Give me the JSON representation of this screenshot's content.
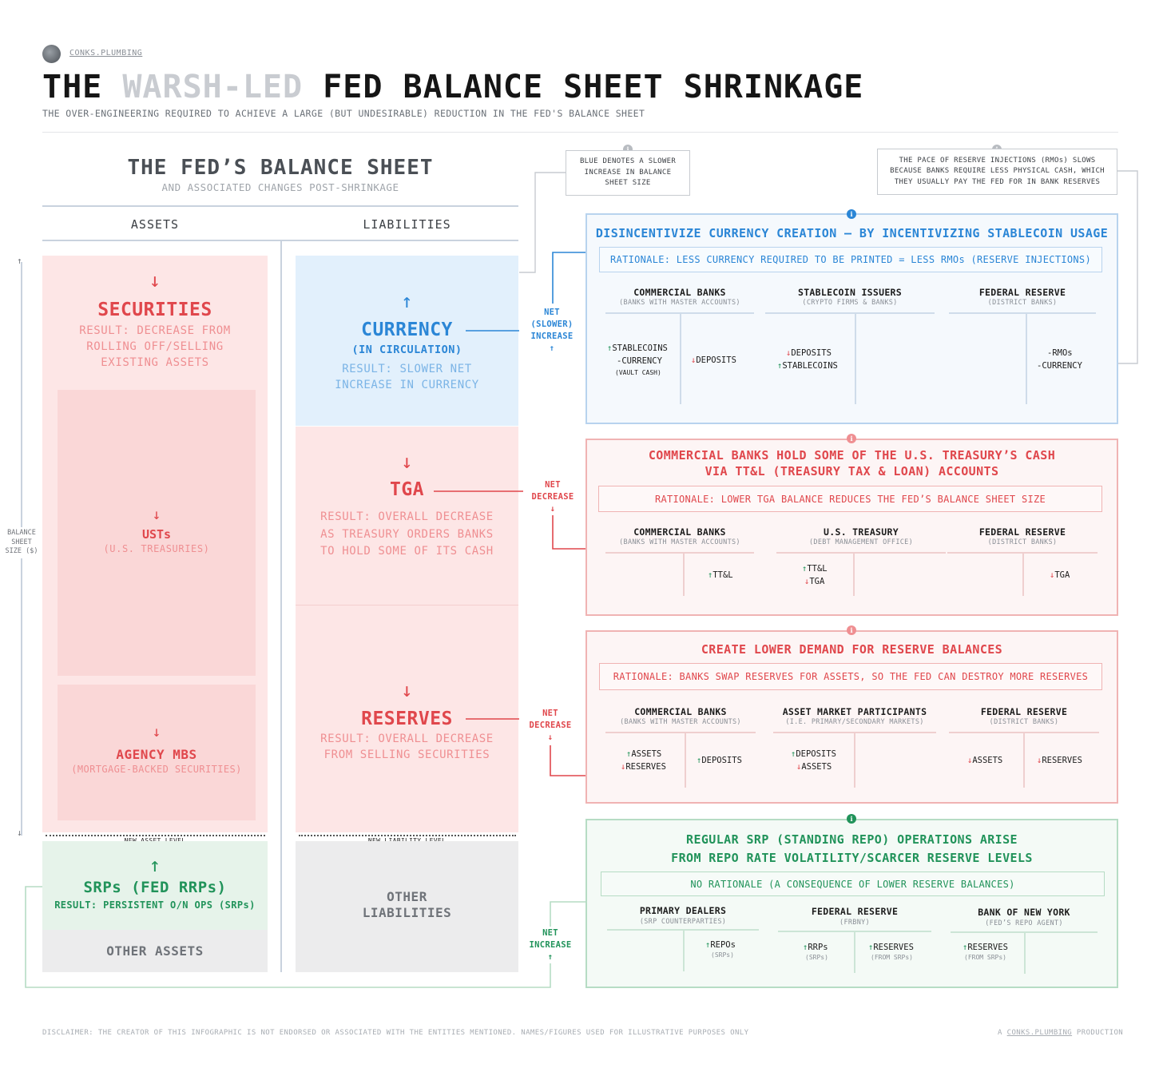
{
  "header": {
    "brand": "CONKS.PLUMBING",
    "title_pre": "THE ",
    "title_highlight": "WARSH-LED",
    "title_post": " FED BALANCE SHEET SHRINKAGE",
    "subtitle": "THE OVER-ENGINEERING REQUIRED TO ACHIEVE A LARGE (BUT UNDESIRABLE) REDUCTION IN THE FED'S BALANCE SHEET"
  },
  "balance_sheet": {
    "title": "THE FED’S BALANCE SHEET",
    "subtitle": "AND ASSOCIATED CHANGES POST-SHRINKAGE",
    "assets_header": "ASSETS",
    "liabilities_header": "LIABILITIES",
    "axis_label": "BALANCE SHEET SIZE ($)",
    "securities": {
      "arrow": "↓",
      "name": "SECURITIES",
      "result": "RESULT: DECREASE FROM ROLLING OFF/SELLING EXISTING ASSETS"
    },
    "usts": {
      "arrow": "↓",
      "name": "USTs",
      "sub": "(U.S. TREASURIES)"
    },
    "mbs": {
      "arrow": "↓",
      "name": "AGENCY MBS",
      "sub": "(MORTGAGE-BACKED SECURITIES)"
    },
    "new_asset_level": "NEW ASSET LEVEL",
    "srps": {
      "arrow": "↑",
      "name": "SRPs (FED RRPs)",
      "result": "RESULT: PERSISTENT O/N OPS (SRPs)"
    },
    "other_assets": "OTHER ASSETS",
    "currency": {
      "arrow": "↑",
      "name": "CURRENCY",
      "sub": "(IN CIRCULATION)",
      "result": "RESULT: SLOWER NET INCREASE IN CURRENCY"
    },
    "tga": {
      "arrow": "↓",
      "name": "TGA",
      "result": "RESULT: OVERALL DECREASE AS TREASURY ORDERS BANKS TO HOLD SOME OF ITS CASH"
    },
    "reserves": {
      "arrow": "↓",
      "name": "RESERVES",
      "result": "RESULT: OVERALL DECREASE FROM SELLING SECURITIES"
    },
    "new_liability_level": "NEW LIABILITY LEVEL",
    "other_liabilities": "OTHER LIABILITIES"
  },
  "net_labels": {
    "currency": {
      "line1": "NET",
      "line2": "(SLOWER)",
      "line3": "INCREASE",
      "arrow": "↑"
    },
    "tga": {
      "line1": "NET",
      "line2": "DECREASE",
      "arrow": "↓"
    },
    "reserves": {
      "line1": "NET",
      "line2": "DECREASE",
      "arrow": "↓"
    },
    "srps": {
      "line1": "NET",
      "line2": "INCREASE",
      "arrow": "↑"
    }
  },
  "notes": {
    "blue_note": "BLUE DENOTES A SLOWER INCREASE IN BALANCE SHEET SIZE",
    "rmo_note": "THE PACE OF RESERVE INJECTIONS (RMOs) SLOWS BECAUSE BANKS REQUIRE LESS PHYSICAL CASH, WHICH THEY USUALLY PAY THE FED FOR IN BANK RESERVES"
  },
  "panels": {
    "currency": {
      "title": "DISINCENTIVIZE CURRENCY CREATION — BY INCENTIVIZING STABLECOIN USAGE",
      "rationale": "RATIONALE: LESS CURRENCY REQUIRED TO BE PRINTED = LESS RMOs (RESERVE INJECTIONS)",
      "entities": [
        {
          "name": "COMMERCIAL BANKS",
          "sub": "(BANKS WITH MASTER ACCOUNTS)"
        },
        {
          "name": "STABLECOIN ISSUERS",
          "sub": "(CRYPTO FIRMS & BANKS)"
        },
        {
          "name": "FEDERAL RESERVE",
          "sub": "(DISTRICT BANKS)"
        }
      ],
      "cb_assets": {
        "a1": "STABLECOINS",
        "a2": "CURRENCY",
        "a2sub": "(VAULT CASH)"
      },
      "cb_liab": {
        "l1": "DEPOSITS"
      },
      "si_assets": {
        "a1": "DEPOSITS",
        "a2": "STABLECOINS"
      },
      "fr_liab": {
        "l1": "RMOs",
        "l2": "CURRENCY"
      }
    },
    "tga": {
      "title1": "COMMERCIAL BANKS HOLD SOME OF THE U.S. TREASURY’S CASH",
      "title2": "VIA TT&L (TREASURY TAX & LOAN) ACCOUNTS",
      "rationale": "RATIONALE: LOWER TGA BALANCE REDUCES THE FED’S BALANCE SHEET SIZE",
      "entities": [
        {
          "name": "COMMERCIAL BANKS",
          "sub": "(BANKS WITH MASTER ACCOUNTS)"
        },
        {
          "name": "U.S. TREASURY",
          "sub": "(DEBT MANAGEMENT OFFICE)"
        },
        {
          "name": "FEDERAL RESERVE",
          "sub": "(DISTRICT BANKS)"
        }
      ],
      "cb_liab": "TT&L",
      "ust_assets": {
        "a1": "TT&L",
        "a2": "TGA"
      },
      "fr_liab": "TGA"
    },
    "reserves": {
      "title": "CREATE LOWER DEMAND FOR RESERVE BALANCES",
      "rationale": "RATIONALE: BANKS SWAP RESERVES FOR ASSETS, SO THE FED CAN DESTROY MORE RESERVES",
      "entities": [
        {
          "name": "COMMERCIAL BANKS",
          "sub": "(BANKS WITH MASTER ACCOUNTS)"
        },
        {
          "name": "ASSET MARKET PARTICIPANTS",
          "sub": "(I.E. PRIMARY/SECONDARY MARKETS)"
        },
        {
          "name": "FEDERAL RESERVE",
          "sub": "(DISTRICT BANKS)"
        }
      ],
      "cb_assets": {
        "a1": "ASSETS",
        "a2": "RESERVES"
      },
      "cb_liab": "DEPOSITS",
      "amp_assets": {
        "a1": "DEPOSITS",
        "a2": "ASSETS"
      },
      "fr_assets": "ASSETS",
      "fr_liab": "RESERVES"
    },
    "srp": {
      "title1": "REGULAR SRP (STANDING REPO) OPERATIONS ARISE",
      "title2": "FROM REPO RATE VOLATILITY/SCARCER RESERVE LEVELS",
      "rationale": "NO RATIONALE (A CONSEQUENCE OF LOWER RESERVE BALANCES)",
      "entities": [
        {
          "name": "PRIMARY DEALERS",
          "sub": "(SRP COUNTERPARTIES)"
        },
        {
          "name": "FEDERAL RESERVE",
          "sub": "(FRBNY)"
        },
        {
          "name": "BANK OF NEW YORK",
          "sub": "(FED’S REPO AGENT)"
        }
      ],
      "pd_liab": {
        "l1": "REPOs",
        "sub": "(SRPs)"
      },
      "fr_assets": {
        "a1": "RRPs",
        "sub": "(SRPs)"
      },
      "fr_liab": {
        "l1": "RESERVES",
        "sub": "(FROM SRPs)"
      },
      "bny_assets": {
        "a1": "RESERVES",
        "sub": "(FROM SRPs)"
      }
    }
  },
  "footer": {
    "disclaimer": "DISCLAIMER: THE CREATOR OF THIS INFOGRAPHIC IS NOT ENDORSED OR ASSOCIATED WITH THE ENTITIES MENTIONED. NAMES/FIGURES USED FOR ILLUSTRATIVE PURPOSES ONLY",
    "credit_pre": "A ",
    "credit_link": "CONKS.PLUMBING",
    "credit_post": " PRODUCTION"
  },
  "colors": {
    "red": "#e0474c",
    "blue": "#2b86d6",
    "green": "#21935a",
    "grey": "#6f7379"
  }
}
